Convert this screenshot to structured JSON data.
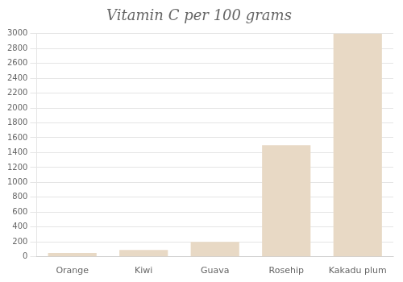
{
  "chart_data": {
    "type": "bar",
    "title": "Vitamin C per 100 grams",
    "categories": [
      "Orange",
      "Kiwi",
      "Guava",
      "Rosehip",
      "Kakadu plum"
    ],
    "values": [
      53,
      93,
      200,
      1500,
      3000
    ],
    "color": "#e8d9c5",
    "ylim": [
      0,
      3000
    ],
    "yticks": [
      0,
      200,
      400,
      600,
      800,
      1000,
      1200,
      1400,
      1600,
      1800,
      2000,
      2200,
      2400,
      2600,
      2800,
      3000
    ],
    "grid": true
  }
}
